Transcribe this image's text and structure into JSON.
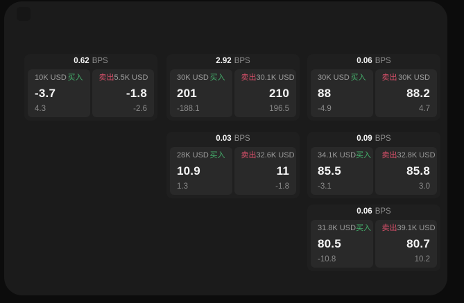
{
  "labels": {
    "bps": "BPS",
    "buy": "买入",
    "sell": "卖出"
  },
  "colors": {
    "buy_green": "#45b06c",
    "sell_red": "#d9506a",
    "panel_bg": "#1b1b1b",
    "card_bg": "#1f1f1f",
    "tile_bg": "#292929",
    "outer_bg": "#0c0c0c"
  },
  "cards": [
    {
      "col": 1,
      "row": 1,
      "bps": "0.62",
      "buy": {
        "amount": "10K USD",
        "value": "-3.7",
        "sub": "4.3"
      },
      "sell": {
        "amount": "5.5K USD",
        "value": "-1.8",
        "sub": "-2.6"
      }
    },
    {
      "col": 2,
      "row": 1,
      "bps": "2.92",
      "buy": {
        "amount": "30K USD",
        "value": "201",
        "sub": "-188.1"
      },
      "sell": {
        "amount": "30.1K USD",
        "value": "210",
        "sub": "196.5"
      }
    },
    {
      "col": 3,
      "row": 1,
      "bps": "0.06",
      "buy": {
        "amount": "30K USD",
        "value": "88",
        "sub": "-4.9"
      },
      "sell": {
        "amount": "30K USD",
        "value": "88.2",
        "sub": "4.7"
      }
    },
    {
      "col": 2,
      "row": 2,
      "bps": "0.03",
      "buy": {
        "amount": "28K USD",
        "value": "10.9",
        "sub": "1.3"
      },
      "sell": {
        "amount": "32.6K USD",
        "value": "11",
        "sub": "-1.8"
      }
    },
    {
      "col": 3,
      "row": 2,
      "bps": "0.09",
      "buy": {
        "amount": "34.1K USD",
        "value": "85.5",
        "sub": "-3.1"
      },
      "sell": {
        "amount": "32.8K USD",
        "value": "85.8",
        "sub": "3.0"
      }
    },
    {
      "col": 3,
      "row": 3,
      "bps": "0.06",
      "buy": {
        "amount": "31.8K USD",
        "value": "80.5",
        "sub": "-10.8"
      },
      "sell": {
        "amount": "39.1K USD",
        "value": "80.7",
        "sub": "10.2"
      }
    }
  ]
}
